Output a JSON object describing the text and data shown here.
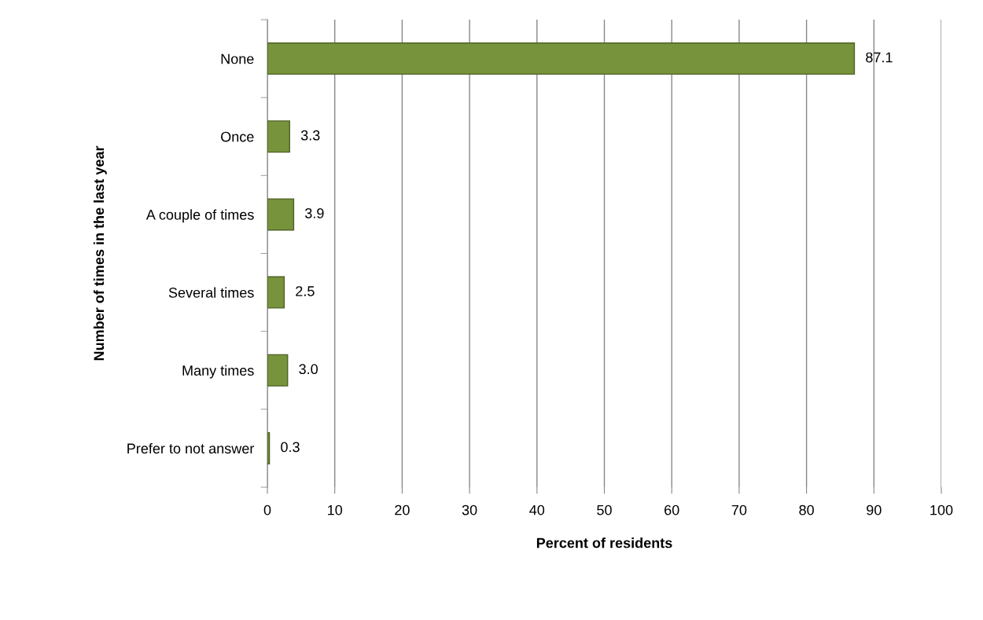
{
  "chart_data": {
    "type": "bar",
    "orientation": "horizontal",
    "xlabel": "Percent of residents",
    "ylabel": "Number of times in the last year",
    "categories": [
      "None",
      "Once",
      "A couple of times",
      "Several times",
      "Many times",
      "Prefer to not answer"
    ],
    "values": [
      87.1,
      3.3,
      3.9,
      2.5,
      3.0,
      0.3
    ],
    "color": "#77933c",
    "xlim": [
      0,
      100
    ],
    "xticks": [
      0,
      10,
      20,
      30,
      40,
      50,
      60,
      70,
      80,
      90,
      100
    ],
    "grid": "x",
    "value_labels": [
      "87.1",
      "3.3",
      "3.9",
      "2.5",
      "3.0",
      "0.3"
    ],
    "legend": false
  }
}
